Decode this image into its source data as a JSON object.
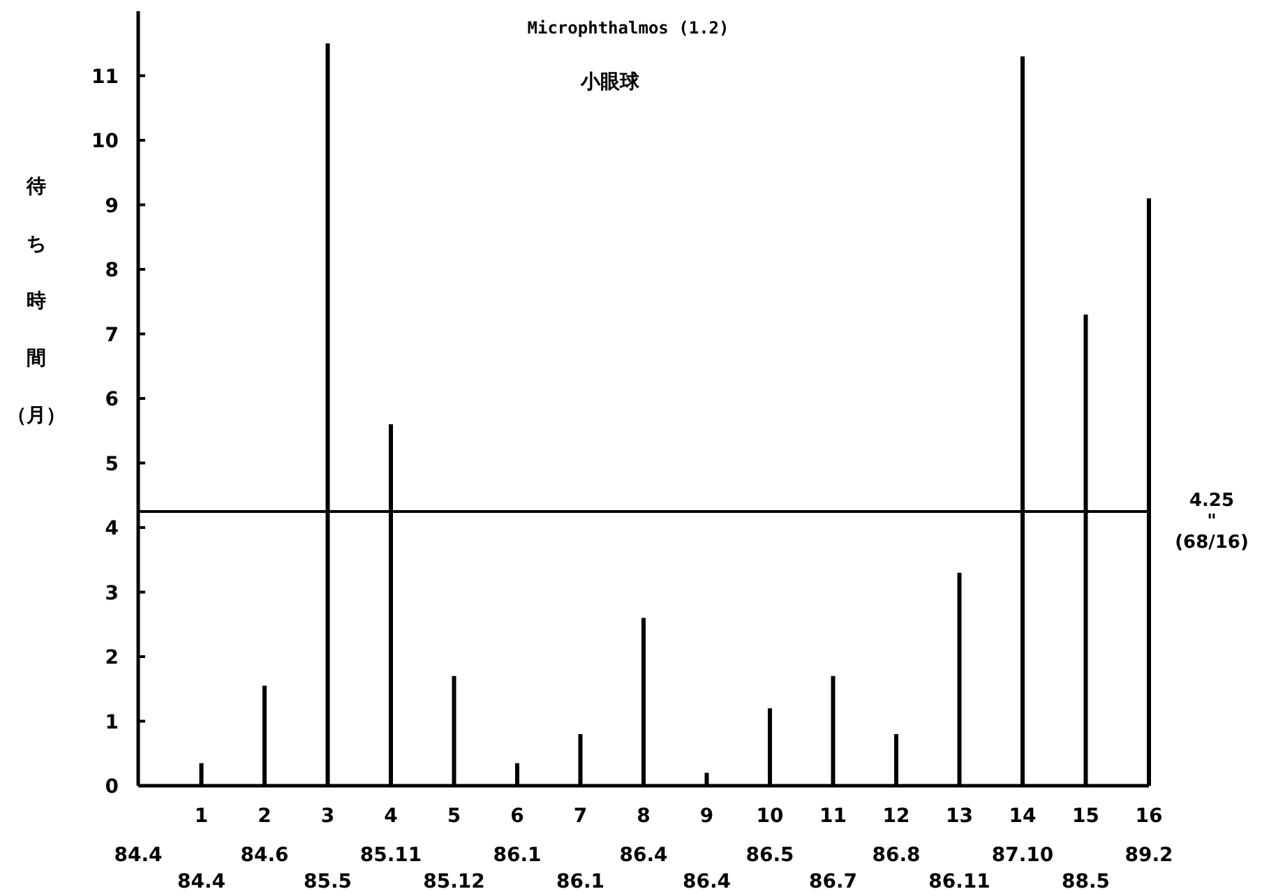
{
  "chart_data": {
    "type": "bar",
    "title": "Microphthalmos (1.2)",
    "subtitle": "小眼球",
    "ylabel": "待ち時間（月）",
    "x": [
      1,
      2,
      3,
      4,
      5,
      6,
      7,
      8,
      9,
      10,
      11,
      12,
      13,
      14,
      15,
      16
    ],
    "values": [
      0.35,
      1.55,
      11.5,
      5.6,
      1.7,
      0.35,
      0.8,
      2.6,
      0.2,
      1.2,
      1.7,
      0.8,
      3.3,
      11.3,
      7.3,
      9.1
    ],
    "color": "#000000",
    "xlim": [
      0,
      16
    ],
    "xticks": [
      1,
      2,
      3,
      4,
      5,
      6,
      7,
      8,
      9,
      10,
      11,
      12,
      13,
      14,
      15,
      16
    ],
    "ylim": [
      0,
      12
    ],
    "yticks": [
      0,
      1,
      2,
      3,
      4,
      5,
      6,
      7,
      8,
      9,
      10,
      11
    ],
    "ref_lines": [
      {
        "axis": "y",
        "value": 4.25,
        "label": "4.25\n\"\n(68/16)",
        "color": "#000000"
      }
    ],
    "annotations": [
      "84.4",
      "84.4",
      "84.6",
      "85.5",
      "85.11",
      "85.12",
      "86.1",
      "86.1",
      "86.4",
      "86.4",
      "86.5",
      "86.7",
      "86.8",
      "86.11",
      "87.10",
      "88.5",
      "89.2"
    ]
  }
}
